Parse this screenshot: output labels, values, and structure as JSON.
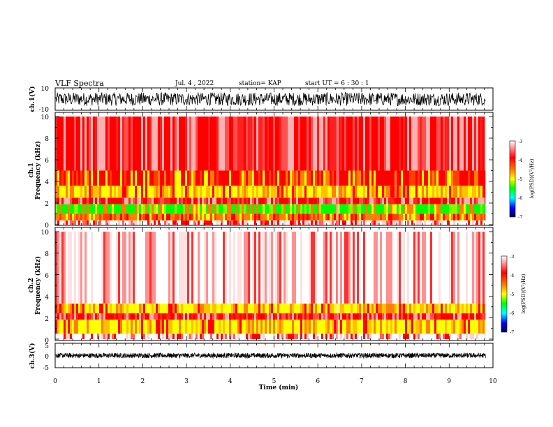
{
  "header": {
    "title": "VLF Spectra",
    "date": "Jul. 4 , 2022",
    "station": "station= KAP",
    "start": "start UT =  6 : 30 : 1"
  },
  "chart_data": [
    {
      "type": "line",
      "panel": "ch1-waveform",
      "ylabel": "ch.1(V)",
      "yticks": [
        "10",
        "-10"
      ],
      "ylim": [
        -10,
        10
      ],
      "xlim": [
        0,
        10
      ],
      "color": "#000000",
      "note_values": "noisy waveform, approx amplitude -6..6 V"
    },
    {
      "type": "heatmap",
      "panel": "ch1-spectrogram",
      "ylabel": "ch.1\nFrequency (kHz)",
      "ylabel_lines": [
        "ch.1",
        "Frequency  (kHz)"
      ],
      "yticks": [
        "0",
        "2",
        "4",
        "6",
        "8",
        "10"
      ],
      "ylim": [
        0,
        10
      ],
      "xlim": [
        0,
        9.83
      ],
      "bands": [
        {
          "from": 0,
          "to": 0.4,
          "level": "white-red"
        },
        {
          "from": 0.4,
          "to": 1.0,
          "level": "orange"
        },
        {
          "from": 1.0,
          "to": 1.9,
          "level": "green-yellow"
        },
        {
          "from": 1.9,
          "to": 2.5,
          "level": "red"
        },
        {
          "from": 2.5,
          "to": 3.6,
          "level": "yellow-orange"
        },
        {
          "from": 3.6,
          "to": 5.0,
          "level": "red-orange"
        },
        {
          "from": 5.0,
          "to": 10,
          "level": "red"
        }
      ],
      "colorbar": {
        "label": "log(PSD)(V²/Hz)",
        "ticks": [
          "-3",
          "-4",
          "-5",
          "-6",
          "-7"
        ],
        "range": [
          -7,
          -3
        ]
      }
    },
    {
      "type": "heatmap",
      "panel": "ch2-spectrogram",
      "ylabel": "ch.2\nFrequency (kHz)",
      "ylabel_lines": [
        "ch.2",
        "Frequency  (kHz)"
      ],
      "yticks": [
        "0",
        "2",
        "4",
        "6",
        "8",
        "10"
      ],
      "ylim": [
        0,
        10
      ],
      "xlim": [
        0,
        9.83
      ],
      "bands": [
        {
          "from": 0,
          "to": 0.5,
          "level": "white-red"
        },
        {
          "from": 0.5,
          "to": 1.8,
          "level": "yellow-orange"
        },
        {
          "from": 1.8,
          "to": 2.4,
          "level": "red"
        },
        {
          "from": 2.4,
          "to": 3.3,
          "level": "yellow-orange"
        },
        {
          "from": 3.3,
          "to": 10,
          "level": "light-red"
        }
      ],
      "colorbar": {
        "label": "log(PSD)(V²/Hz)",
        "ticks": [
          "-3",
          "-4",
          "-5",
          "-6",
          "-7"
        ],
        "range": [
          -7,
          -3
        ]
      }
    },
    {
      "type": "line",
      "panel": "ch3-waveform",
      "ylabel": "ch.3(V)",
      "yticks": [
        "5",
        "0",
        "-5"
      ],
      "ylim": [
        -5,
        5
      ],
      "xlim": [
        0,
        10
      ],
      "color": "#000000",
      "note_values": "dense waveform, approx amplitude -1..1 V"
    }
  ],
  "xaxis": {
    "label": "Time  (min)",
    "ticks": [
      "0",
      "1",
      "2",
      "3",
      "4",
      "5",
      "6",
      "7",
      "8",
      "9",
      "10"
    ],
    "range": [
      0,
      10
    ]
  },
  "colors": {
    "white": "#ffffff",
    "red": "#ff0000",
    "orange": "#ff8000",
    "yellow": "#ffff00",
    "green": "#00ff00",
    "cyan": "#00ffff",
    "blue": "#0000ff",
    "navy": "#000050"
  }
}
